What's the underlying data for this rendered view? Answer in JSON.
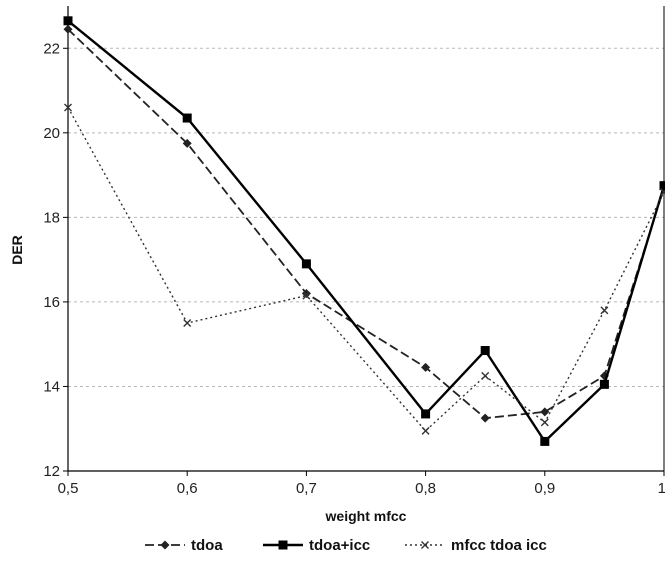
{
  "chart_data": {
    "type": "line",
    "title": "",
    "xlabel": "weight mfcc",
    "ylabel": "DER",
    "x": [
      0.5,
      0.6,
      0.7,
      0.8,
      0.85,
      0.9,
      0.95,
      1.0
    ],
    "x_tick_labels": [
      "0,5",
      "0,6",
      "0,7",
      "0,8",
      "0,9",
      "1"
    ],
    "x_ticks": [
      0.5,
      0.6,
      0.7,
      0.8,
      0.9,
      1.0
    ],
    "xlim": [
      0.5,
      1.0
    ],
    "y_ticks": [
      12,
      14,
      16,
      18,
      20,
      22
    ],
    "ylim": [
      12,
      23
    ],
    "grid": "horizontal dashed",
    "legend_position": "bottom",
    "series": [
      {
        "name": "tdoa",
        "values": [
          22.45,
          19.75,
          16.2,
          14.45,
          13.25,
          13.4,
          14.25,
          18.7
        ],
        "line_style": "dashed",
        "marker": "diamond",
        "color": "#222222"
      },
      {
        "name": "tdoa+icc",
        "values": [
          22.65,
          20.35,
          16.9,
          13.35,
          14.85,
          12.7,
          14.05,
          18.75
        ],
        "line_style": "solid",
        "marker": "square",
        "color": "#000000"
      },
      {
        "name": "mfcc tdoa icc",
        "values": [
          20.6,
          15.5,
          16.15,
          12.95,
          14.25,
          13.15,
          15.8,
          18.6
        ],
        "line_style": "dotted",
        "marker": "x",
        "color": "#333333"
      }
    ]
  }
}
